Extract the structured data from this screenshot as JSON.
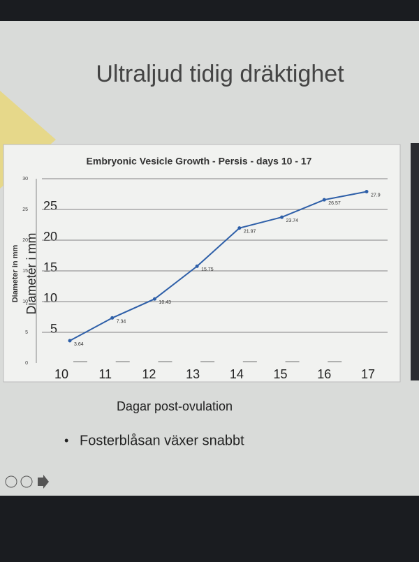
{
  "slide_title": "Ultraljud tidig dräktighet",
  "chart_data": {
    "type": "line",
    "title": "Embryonic Vesicle Growth - Persis - days 10 - 17",
    "categories": [
      "10",
      "11",
      "12",
      "13",
      "14",
      "15",
      "16",
      "17"
    ],
    "series": [
      {
        "name": "Diameter",
        "color": "#2e5fa8",
        "values": [
          3.64,
          7.34,
          10.43,
          15.75,
          21.97,
          23.74,
          26.57,
          27.9
        ]
      }
    ],
    "ylim": [
      0,
      30
    ],
    "yticks": [
      0,
      5,
      10,
      15,
      20,
      25,
      30
    ],
    "grid": true,
    "ylabel": "Diameter in mm",
    "overlay_ylabel": "Diameter i mm",
    "xlabel": "Dagar post-ovulation"
  },
  "bullets": [
    "Fosterblåsan växer snabbt"
  ]
}
